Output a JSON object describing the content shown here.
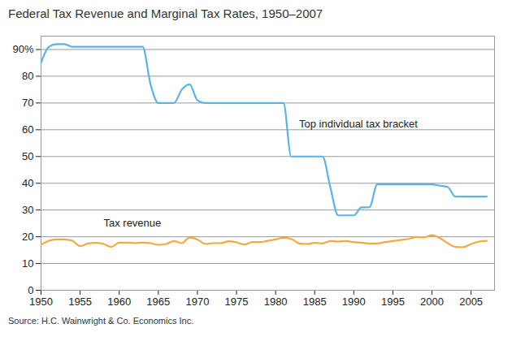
{
  "chart_data": {
    "type": "line",
    "title": "Federal Tax Revenue and Marginal Tax Rates, 1950–2007",
    "caption": "Source: H.C. Wainwright & Co. Economics Inc.",
    "x": [
      1950,
      1951,
      1952,
      1953,
      1954,
      1955,
      1956,
      1957,
      1958,
      1959,
      1960,
      1961,
      1962,
      1963,
      1964,
      1965,
      1966,
      1967,
      1968,
      1969,
      1970,
      1971,
      1972,
      1973,
      1974,
      1975,
      1976,
      1977,
      1978,
      1979,
      1980,
      1981,
      1982,
      1983,
      1984,
      1985,
      1986,
      1987,
      1988,
      1989,
      1990,
      1991,
      1992,
      1993,
      1994,
      1995,
      1996,
      1997,
      1998,
      1999,
      2000,
      2001,
      2002,
      2003,
      2004,
      2005,
      2006,
      2007
    ],
    "series": [
      {
        "name": "Top individual tax bracket",
        "color": "#5ab4e5",
        "values": [
          85,
          91,
          92,
          92,
          91,
          91,
          91,
          91,
          91,
          91,
          91,
          91,
          91,
          91,
          77,
          70,
          70,
          70,
          75,
          77,
          71,
          70,
          70,
          70,
          70,
          70,
          70,
          70,
          70,
          70,
          70,
          70,
          50,
          50,
          50,
          50,
          50,
          38.5,
          28,
          28,
          28,
          31,
          31,
          39.6,
          39.6,
          39.6,
          39.6,
          39.6,
          39.6,
          39.6,
          39.6,
          39.1,
          38.6,
          35,
          35,
          35,
          35,
          35
        ]
      },
      {
        "name": "Tax revenue",
        "color": "#f4a93c",
        "values": [
          17,
          18.5,
          19,
          19,
          18.5,
          16.5,
          17.5,
          17.7,
          17.3,
          16.2,
          17.8,
          17.8,
          17.6,
          17.8,
          17.6,
          17,
          17.3,
          18.4,
          17.6,
          19.7,
          19,
          17.3,
          17.6,
          17.6,
          18.3,
          17.9,
          17.1,
          18,
          18,
          18.5,
          19,
          19.6,
          19.2,
          17.5,
          17.3,
          17.7,
          17.5,
          18.4,
          18.2,
          18.4,
          18,
          17.8,
          17.5,
          17.5,
          18,
          18.4,
          18.8,
          19.2,
          19.9,
          19.8,
          20.6,
          19.5,
          17.6,
          16.2,
          16.1,
          17.3,
          18.2,
          18.5
        ]
      }
    ],
    "annotations": [
      {
        "text": "Top individual tax bracket",
        "x": 1983,
        "y": 62
      },
      {
        "text": "Tax revenue",
        "x": 1958,
        "y": 25
      }
    ],
    "xlim": [
      1950,
      2008
    ],
    "xticks": [
      1950,
      1955,
      1960,
      1965,
      1970,
      1975,
      1980,
      1985,
      1990,
      1995,
      2000,
      2005
    ],
    "ylim": [
      0,
      95
    ],
    "yticks": [
      0,
      10,
      20,
      30,
      40,
      50,
      60,
      70,
      80,
      {
        "value": 90,
        "label": "90%"
      }
    ],
    "grid": true
  }
}
